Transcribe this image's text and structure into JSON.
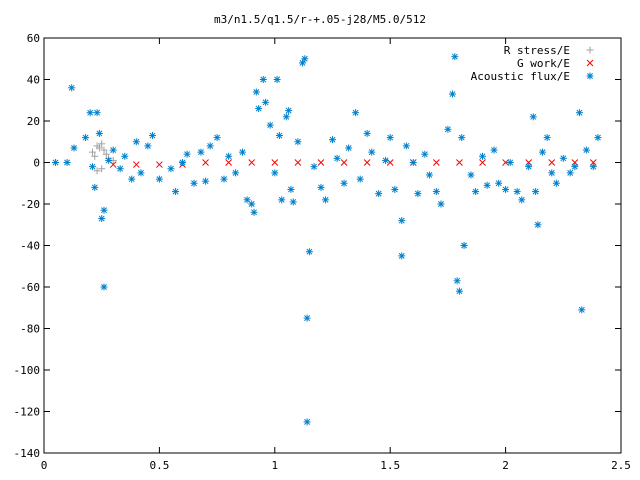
{
  "chart_data": {
    "type": "scatter",
    "title": "m3/n1.5/q1.5/r-+.05-j28/M5.0/512",
    "xlabel": "",
    "ylabel": "",
    "xlim": [
      0,
      2.5
    ],
    "ylim": [
      -140,
      60
    ],
    "xticks": [
      0,
      0.5,
      1,
      1.5,
      2,
      2.5
    ],
    "yticks": [
      -140,
      -120,
      -100,
      -80,
      -60,
      -40,
      -20,
      0,
      20,
      40,
      60
    ],
    "grid": false,
    "legend_position": "top-right",
    "series": [
      {
        "name": "R stress/E",
        "marker": "plus",
        "color": "#a0a0a0",
        "points": [
          [
            0.21,
            5
          ],
          [
            0.22,
            3
          ],
          [
            0.23,
            8
          ],
          [
            0.24,
            7
          ],
          [
            0.25,
            9
          ],
          [
            0.26,
            6
          ],
          [
            0.27,
            4
          ],
          [
            0.23,
            -4
          ],
          [
            0.25,
            -3
          ],
          [
            0.28,
            2
          ],
          [
            0.3,
            1
          ]
        ]
      },
      {
        "name": "G work/E",
        "marker": "cross",
        "color": "#ff0000",
        "points": [
          [
            0.3,
            -1
          ],
          [
            0.4,
            -1
          ],
          [
            0.5,
            -1
          ],
          [
            0.6,
            -1
          ],
          [
            0.7,
            0
          ],
          [
            0.8,
            0
          ],
          [
            0.9,
            0
          ],
          [
            1.0,
            0
          ],
          [
            1.1,
            0
          ],
          [
            1.2,
            0
          ],
          [
            1.3,
            0
          ],
          [
            1.4,
            0
          ],
          [
            1.5,
            0
          ],
          [
            1.6,
            0
          ],
          [
            1.7,
            0
          ],
          [
            1.8,
            0
          ],
          [
            1.9,
            0
          ],
          [
            2.0,
            0
          ],
          [
            2.1,
            0
          ],
          [
            2.2,
            0
          ],
          [
            2.3,
            0
          ],
          [
            2.38,
            0
          ]
        ]
      },
      {
        "name": "Acoustic flux/E",
        "marker": "star",
        "color": "#0080cc",
        "points": [
          [
            0.05,
            0
          ],
          [
            0.1,
            0
          ],
          [
            0.12,
            36
          ],
          [
            0.13,
            7
          ],
          [
            0.18,
            12
          ],
          [
            0.2,
            24
          ],
          [
            0.21,
            -2
          ],
          [
            0.22,
            -12
          ],
          [
            0.23,
            24
          ],
          [
            0.24,
            14
          ],
          [
            0.25,
            -27
          ],
          [
            0.26,
            -23
          ],
          [
            0.26,
            -60
          ],
          [
            0.28,
            1
          ],
          [
            0.3,
            6
          ],
          [
            0.33,
            -3
          ],
          [
            0.35,
            3
          ],
          [
            0.38,
            -8
          ],
          [
            0.4,
            10
          ],
          [
            0.42,
            -5
          ],
          [
            0.45,
            8
          ],
          [
            0.47,
            13
          ],
          [
            0.5,
            -8
          ],
          [
            0.55,
            -3
          ],
          [
            0.57,
            -14
          ],
          [
            0.6,
            0
          ],
          [
            0.62,
            4
          ],
          [
            0.65,
            -10
          ],
          [
            0.68,
            5
          ],
          [
            0.7,
            -9
          ],
          [
            0.72,
            8
          ],
          [
            0.75,
            12
          ],
          [
            0.78,
            -8
          ],
          [
            0.8,
            3
          ],
          [
            0.83,
            -5
          ],
          [
            0.86,
            5
          ],
          [
            0.88,
            -18
          ],
          [
            0.9,
            -20
          ],
          [
            0.91,
            -24
          ],
          [
            0.92,
            34
          ],
          [
            0.93,
            26
          ],
          [
            0.95,
            40
          ],
          [
            0.96,
            29
          ],
          [
            0.98,
            18
          ],
          [
            1.0,
            -5
          ],
          [
            1.01,
            40
          ],
          [
            1.02,
            13
          ],
          [
            1.03,
            -18
          ],
          [
            1.05,
            22
          ],
          [
            1.06,
            25
          ],
          [
            1.07,
            -13
          ],
          [
            1.08,
            -19
          ],
          [
            1.1,
            10
          ],
          [
            1.12,
            48
          ],
          [
            1.13,
            50
          ],
          [
            1.14,
            -75
          ],
          [
            1.14,
            -125
          ],
          [
            1.15,
            -43
          ],
          [
            1.17,
            -2
          ],
          [
            1.2,
            -12
          ],
          [
            1.22,
            -18
          ],
          [
            1.25,
            11
          ],
          [
            1.27,
            2
          ],
          [
            1.3,
            -10
          ],
          [
            1.32,
            7
          ],
          [
            1.35,
            24
          ],
          [
            1.37,
            -8
          ],
          [
            1.4,
            14
          ],
          [
            1.42,
            5
          ],
          [
            1.45,
            -15
          ],
          [
            1.48,
            1
          ],
          [
            1.5,
            12
          ],
          [
            1.52,
            -13
          ],
          [
            1.55,
            -28
          ],
          [
            1.55,
            -45
          ],
          [
            1.57,
            8
          ],
          [
            1.6,
            0
          ],
          [
            1.62,
            -15
          ],
          [
            1.65,
            4
          ],
          [
            1.67,
            -6
          ],
          [
            1.7,
            -14
          ],
          [
            1.72,
            -20
          ],
          [
            1.75,
            16
          ],
          [
            1.77,
            33
          ],
          [
            1.78,
            51
          ],
          [
            1.79,
            -57
          ],
          [
            1.8,
            -62
          ],
          [
            1.81,
            12
          ],
          [
            1.82,
            -40
          ],
          [
            1.85,
            -6
          ],
          [
            1.87,
            -14
          ],
          [
            1.9,
            3
          ],
          [
            1.92,
            -11
          ],
          [
            1.95,
            6
          ],
          [
            1.97,
            -10
          ],
          [
            2.0,
            -13
          ],
          [
            2.02,
            0
          ],
          [
            2.05,
            -14
          ],
          [
            2.07,
            -18
          ],
          [
            2.1,
            -2
          ],
          [
            2.12,
            22
          ],
          [
            2.13,
            -14
          ],
          [
            2.14,
            -30
          ],
          [
            2.16,
            5
          ],
          [
            2.18,
            12
          ],
          [
            2.2,
            -5
          ],
          [
            2.22,
            -10
          ],
          [
            2.25,
            2
          ],
          [
            2.28,
            -5
          ],
          [
            2.3,
            -2
          ],
          [
            2.32,
            24
          ],
          [
            2.33,
            -71
          ],
          [
            2.35,
            6
          ],
          [
            2.38,
            -2
          ],
          [
            2.4,
            12
          ]
        ]
      }
    ]
  }
}
